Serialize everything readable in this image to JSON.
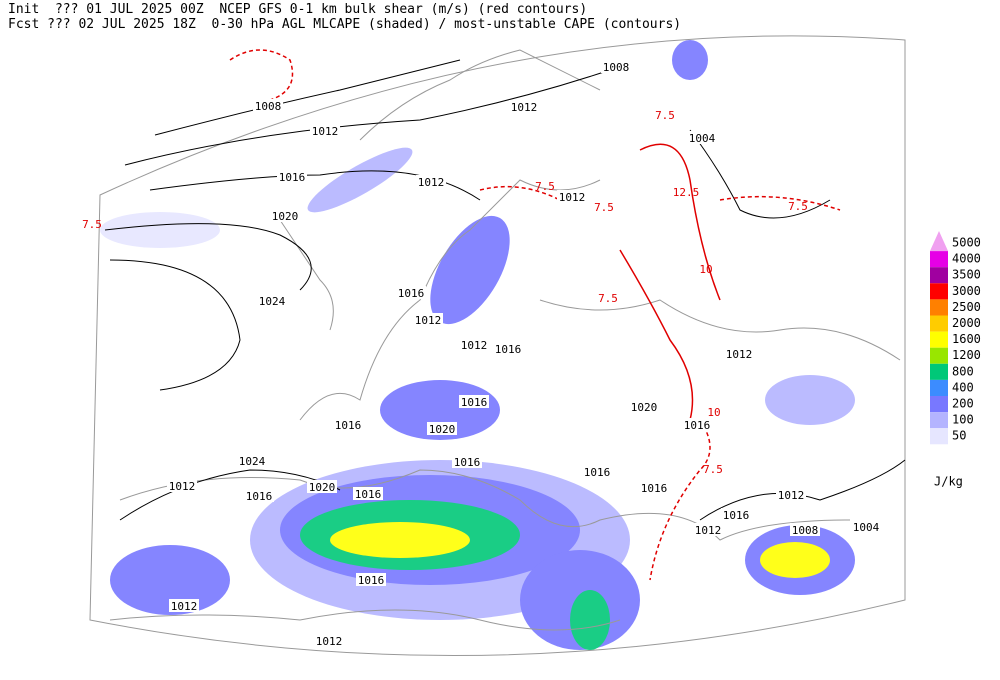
{
  "header": {
    "line1": "Init  ??? 01 JUL 2025 00Z  NCEP GFS 0-1 km bulk shear (m/s) (red contours)",
    "line2": "Fcst ??? 02 JUL 2025 18Z  0-30 hPa AGL MLCAPE (shaded) / most-unstable CAPE (contours)"
  },
  "legend": {
    "levels": [
      5000,
      4000,
      3500,
      3000,
      2500,
      2000,
      1600,
      1200,
      800,
      400,
      200,
      100,
      50
    ],
    "colors": [
      "#f0a0f0",
      "#e600e6",
      "#a000a0",
      "#ff0000",
      "#ff8000",
      "#ffcc00",
      "#ffff00",
      "#99e600",
      "#00c878",
      "#3c8cff",
      "#7878ff",
      "#b4b4ff",
      "#e6e6ff"
    ],
    "unit": "J/kg"
  },
  "isobar_labels": [
    1008,
    1012,
    1004,
    1008,
    1012,
    1016,
    1020,
    1024,
    1012,
    1012,
    1016,
    1012,
    1012,
    1016,
    1012,
    1016,
    1020,
    1016,
    1016,
    1020,
    1024,
    1016,
    1012,
    1016,
    1020,
    1016,
    1016,
    1016,
    1012,
    1016,
    1012,
    1008,
    1004,
    1016,
    1012,
    1012
  ],
  "shear_labels": [
    7.5,
    7.5,
    7.5,
    7.5,
    7.5,
    7.5,
    7.5,
    10,
    10,
    12.5
  ]
}
